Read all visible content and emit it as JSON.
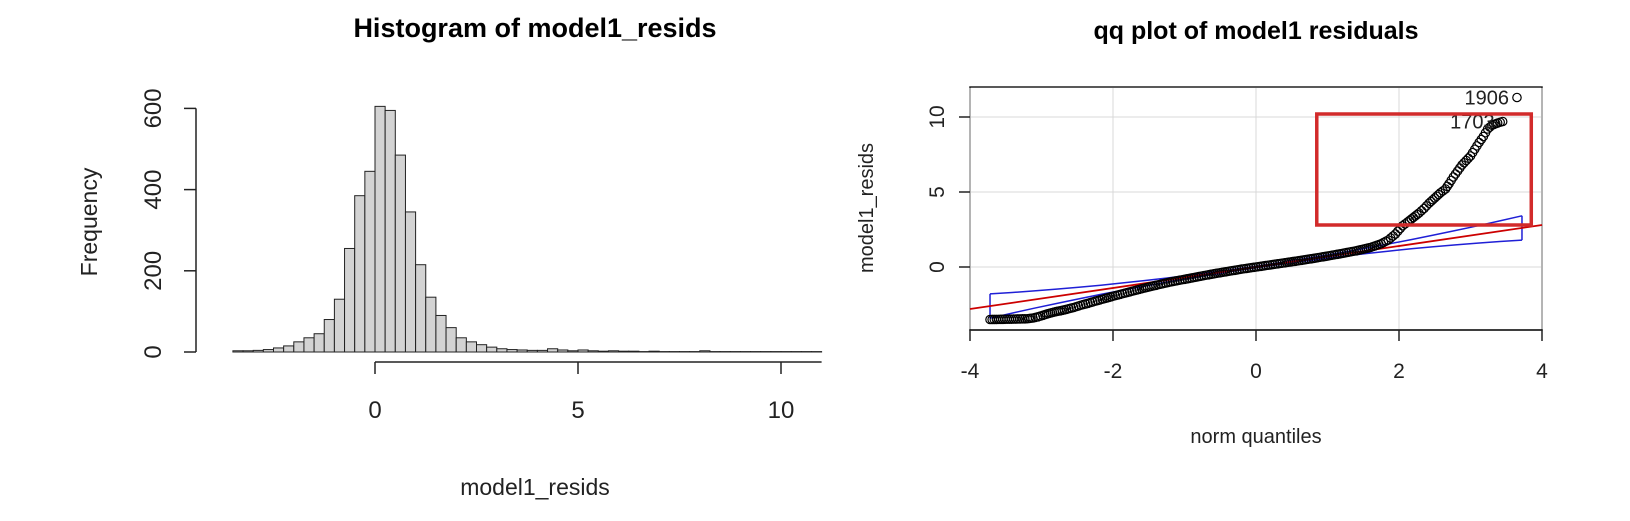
{
  "chart_data": [
    {
      "type": "bar",
      "title": "Histogram of model1_resids",
      "xlabel": "model1_resids",
      "ylabel": "Frequency",
      "xlim": [
        -3.5,
        11
      ],
      "ylim": [
        0,
        600
      ],
      "x_ticks": [
        "0",
        "5",
        "10"
      ],
      "y_ticks": [
        "0",
        "200",
        "400",
        "600"
      ],
      "bin_width": 0.25,
      "bar_color": "#d3d3d3",
      "bins": [
        {
          "x0": -3.5,
          "count": 3
        },
        {
          "x0": -3.25,
          "count": 3
        },
        {
          "x0": -3.0,
          "count": 4
        },
        {
          "x0": -2.75,
          "count": 6
        },
        {
          "x0": -2.5,
          "count": 10
        },
        {
          "x0": -2.25,
          "count": 15
        },
        {
          "x0": -2.0,
          "count": 25
        },
        {
          "x0": -1.75,
          "count": 35
        },
        {
          "x0": -1.5,
          "count": 45
        },
        {
          "x0": -1.25,
          "count": 80
        },
        {
          "x0": -1.0,
          "count": 130
        },
        {
          "x0": -0.75,
          "count": 255
        },
        {
          "x0": -0.5,
          "count": 385
        },
        {
          "x0": -0.25,
          "count": 445
        },
        {
          "x0": 0.0,
          "count": 605
        },
        {
          "x0": 0.25,
          "count": 595
        },
        {
          "x0": 0.5,
          "count": 485
        },
        {
          "x0": 0.75,
          "count": 345
        },
        {
          "x0": 1.0,
          "count": 215
        },
        {
          "x0": 1.25,
          "count": 135
        },
        {
          "x0": 1.5,
          "count": 90
        },
        {
          "x0": 1.75,
          "count": 60
        },
        {
          "x0": 2.0,
          "count": 35
        },
        {
          "x0": 2.25,
          "count": 25
        },
        {
          "x0": 2.5,
          "count": 18
        },
        {
          "x0": 2.75,
          "count": 12
        },
        {
          "x0": 3.0,
          "count": 8
        },
        {
          "x0": 3.25,
          "count": 6
        },
        {
          "x0": 3.5,
          "count": 5
        },
        {
          "x0": 3.75,
          "count": 4
        },
        {
          "x0": 4.0,
          "count": 4
        },
        {
          "x0": 4.25,
          "count": 8
        },
        {
          "x0": 4.5,
          "count": 5
        },
        {
          "x0": 4.75,
          "count": 3
        },
        {
          "x0": 5.0,
          "count": 5
        },
        {
          "x0": 5.25,
          "count": 3
        },
        {
          "x0": 5.5,
          "count": 2
        },
        {
          "x0": 5.75,
          "count": 3
        },
        {
          "x0": 6.0,
          "count": 2
        },
        {
          "x0": 6.25,
          "count": 2
        },
        {
          "x0": 6.5,
          "count": 1
        },
        {
          "x0": 6.75,
          "count": 2
        },
        {
          "x0": 7.0,
          "count": 1
        },
        {
          "x0": 7.25,
          "count": 1
        },
        {
          "x0": 7.5,
          "count": 1
        },
        {
          "x0": 7.75,
          "count": 1
        },
        {
          "x0": 8.0,
          "count": 3
        },
        {
          "x0": 8.25,
          "count": 1
        },
        {
          "x0": 8.5,
          "count": 1
        },
        {
          "x0": 8.75,
          "count": 1
        },
        {
          "x0": 9.0,
          "count": 1
        },
        {
          "x0": 9.25,
          "count": 1
        },
        {
          "x0": 9.5,
          "count": 1
        },
        {
          "x0": 9.75,
          "count": 1
        },
        {
          "x0": 10.0,
          "count": 1
        },
        {
          "x0": 10.25,
          "count": 1
        },
        {
          "x0": 10.5,
          "count": 1
        },
        {
          "x0": 10.75,
          "count": 1
        }
      ]
    },
    {
      "type": "scatter",
      "title": "qq plot of model1 residuals",
      "xlabel": "norm quantiles",
      "ylabel": "model1_resids",
      "xlim": [
        -4,
        4
      ],
      "ylim": [
        -4,
        12
      ],
      "x_ticks": [
        "-4",
        "-2",
        "0",
        "2",
        "4"
      ],
      "y_ticks": [
        "0",
        "5",
        "10"
      ],
      "grid": true,
      "point_color": "#000000",
      "reference_line": {
        "slope": 0.7,
        "intercept": 0.0,
        "color": "#cc0000"
      },
      "envelope_color": "#1f1fd6",
      "highlight_box": {
        "x": [
          0.85,
          3.85
        ],
        "y": [
          2.8,
          10.2
        ],
        "color": "#d22b2b"
      },
      "point_labels": [
        {
          "text": "1906",
          "x": 3.65,
          "y": 11.3
        },
        {
          "text": "1703",
          "x": 3.45,
          "y": 9.7
        }
      ],
      "points": [
        [
          -3.72,
          -3.5
        ],
        [
          -3.45,
          -3.48
        ],
        [
          -3.3,
          -3.46
        ],
        [
          -3.2,
          -3.45
        ],
        [
          -3.12,
          -3.4
        ],
        [
          -3.05,
          -3.32
        ],
        [
          -2.98,
          -3.22
        ],
        [
          -2.9,
          -3.1
        ],
        [
          -2.82,
          -3.0
        ],
        [
          -2.74,
          -2.92
        ],
        [
          -2.65,
          -2.82
        ],
        [
          -2.55,
          -2.7
        ],
        [
          -2.45,
          -2.55
        ],
        [
          -2.35,
          -2.42
        ],
        [
          -2.25,
          -2.28
        ],
        [
          -2.15,
          -2.15
        ],
        [
          -2.0,
          -1.95
        ],
        [
          -1.8,
          -1.7
        ],
        [
          -1.6,
          -1.45
        ],
        [
          -1.4,
          -1.22
        ],
        [
          -1.2,
          -1.0
        ],
        [
          -1.0,
          -0.82
        ],
        [
          -0.8,
          -0.64
        ],
        [
          -0.6,
          -0.46
        ],
        [
          -0.4,
          -0.3
        ],
        [
          -0.2,
          -0.14
        ],
        [
          0.0,
          0.0
        ],
        [
          0.2,
          0.14
        ],
        [
          0.4,
          0.28
        ],
        [
          0.6,
          0.42
        ],
        [
          0.8,
          0.57
        ],
        [
          1.0,
          0.73
        ],
        [
          1.2,
          0.9
        ],
        [
          1.4,
          1.08
        ],
        [
          1.6,
          1.3
        ],
        [
          1.75,
          1.55
        ],
        [
          1.85,
          1.8
        ],
        [
          1.95,
          2.2
        ],
        [
          2.05,
          2.75
        ],
        [
          2.12,
          3.0
        ],
        [
          2.2,
          3.3
        ],
        [
          2.28,
          3.6
        ],
        [
          2.35,
          3.9
        ],
        [
          2.42,
          4.25
        ],
        [
          2.5,
          4.6
        ],
        [
          2.58,
          4.95
        ],
        [
          2.65,
          5.2
        ],
        [
          2.7,
          5.55
        ],
        [
          2.76,
          6.0
        ],
        [
          2.82,
          6.4
        ],
        [
          2.88,
          6.8
        ],
        [
          2.94,
          7.1
        ],
        [
          3.0,
          7.4
        ],
        [
          3.06,
          7.85
        ],
        [
          3.12,
          8.3
        ],
        [
          3.18,
          8.7
        ],
        [
          3.24,
          9.2
        ],
        [
          3.3,
          9.45
        ],
        [
          3.38,
          9.6
        ],
        [
          3.45,
          9.7
        ],
        [
          3.65,
          11.3
        ]
      ]
    }
  ]
}
